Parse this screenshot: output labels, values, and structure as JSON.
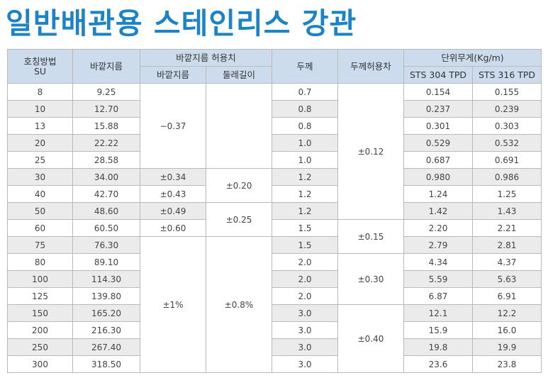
{
  "title": "일반배관용 스테인리스 강관",
  "header": {
    "nominal_line1": "호칭방법",
    "nominal_line2": "SU",
    "outer_diameter": "바깥지름",
    "od_tolerance": "바깥지름 허용치",
    "od_tol_diameter": "바깥지름",
    "od_tol_circumference": "둘레길이",
    "thickness": "두께",
    "thickness_tolerance": "두께허용차",
    "unit_weight": "단위무게(Kg/m)",
    "sts304": "STS 304 TPD",
    "sts316": "STS 316 TPD"
  },
  "rows": [
    {
      "su": "8",
      "od": "9.25",
      "t": "0.7",
      "w304": "0.154",
      "w316": "0.155"
    },
    {
      "su": "10",
      "od": "12.70",
      "t": "0.8",
      "w304": "0.237",
      "w316": "0.239"
    },
    {
      "su": "13",
      "od": "15.88",
      "t": "0.8",
      "w304": "0.301",
      "w316": "0.303"
    },
    {
      "su": "20",
      "od": "22.22",
      "t": "1.0",
      "w304": "0.529",
      "w316": "0.532"
    },
    {
      "su": "25",
      "od": "28.58",
      "t": "1.0",
      "w304": "0.687",
      "w316": "0.691"
    },
    {
      "su": "30",
      "od": "34.00",
      "t": "1.2",
      "w304": "0.980",
      "w316": "0.986"
    },
    {
      "su": "40",
      "od": "42.70",
      "t": "1.2",
      "w304": "1.24",
      "w316": "1.25"
    },
    {
      "su": "50",
      "od": "48.60",
      "t": "1.2",
      "w304": "1.42",
      "w316": "1.43"
    },
    {
      "su": "60",
      "od": "60.50",
      "t": "1.5",
      "w304": "2.20",
      "w316": "2.21"
    },
    {
      "su": "75",
      "od": "76.30",
      "t": "1.5",
      "w304": "2.79",
      "w316": "2.81"
    },
    {
      "su": "80",
      "od": "89.10",
      "t": "2.0",
      "w304": "4.34",
      "w316": "4.37"
    },
    {
      "su": "100",
      "od": "114.30",
      "t": "2.0",
      "w304": "5.59",
      "w316": "5.63"
    },
    {
      "su": "125",
      "od": "139.80",
      "t": "2.0",
      "w304": "6.87",
      "w316": "6.91"
    },
    {
      "su": "150",
      "od": "165.20",
      "t": "3.0",
      "w304": "12.1",
      "w316": "12.2"
    },
    {
      "su": "200",
      "od": "216.30",
      "t": "3.0",
      "w304": "15.9",
      "w316": "16.0"
    },
    {
      "su": "250",
      "od": "267.40",
      "t": "3.0",
      "w304": "19.8",
      "w316": "19.9"
    },
    {
      "su": "300",
      "od": "318.50",
      "t": "3.0",
      "w304": "23.6",
      "w316": "23.8"
    }
  ],
  "od_tol_diameter_cells": [
    {
      "value": "−0.37",
      "span": 5
    },
    {
      "value": "±0.34",
      "span": 1
    },
    {
      "value": "±0.43",
      "span": 1
    },
    {
      "value": "±0.49",
      "span": 1
    },
    {
      "value": "±0.60",
      "span": 1
    },
    {
      "value": "±1%",
      "span": 8
    }
  ],
  "od_tol_circ_cells": [
    {
      "value": "",
      "span": 5
    },
    {
      "value": "±0.20",
      "span": 2
    },
    {
      "value": "±0.25",
      "span": 2
    },
    {
      "value": "±0.8%",
      "span": 8
    }
  ],
  "thickness_tol_cells": [
    {
      "value": "±0.12",
      "span": 8
    },
    {
      "value": "±0.15",
      "span": 2
    },
    {
      "value": "±0.30",
      "span": 3
    },
    {
      "value": "±0.40",
      "span": 4
    }
  ]
}
